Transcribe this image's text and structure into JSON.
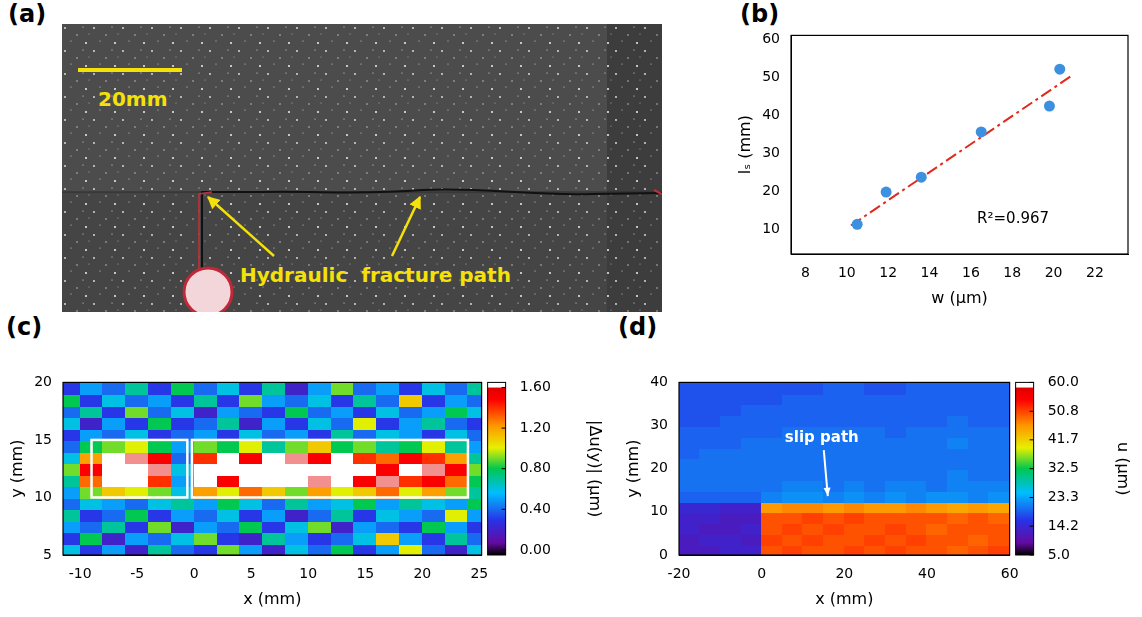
{
  "photo": {
    "panel": "(a)",
    "scale_bar": "20mm",
    "annotation": "Hydraulic  fracture path"
  },
  "chart_data": [
    {
      "panel": "(b)",
      "type": "scatter",
      "x_label": "w (μm)",
      "y_label": "lₛ (mm)",
      "xlim": [
        7.3,
        23.6
      ],
      "xticks": [
        8,
        10,
        12,
        14,
        16,
        18,
        20,
        22
      ],
      "ylim": [
        3.5,
        61
      ],
      "yticks": [
        10,
        20,
        30,
        40,
        50,
        60
      ],
      "grid": false,
      "series": [
        {
          "type": "scatter",
          "marker": "circle",
          "color": "#3d8fe0",
          "x": [
            10.5,
            11.9,
            13.6,
            16.5,
            19.8,
            20.3
          ],
          "values": [
            11.3,
            19.8,
            23.7,
            35.6,
            42.4,
            52.1
          ]
        },
        {
          "type": "line",
          "line_style": "dashdot",
          "color": "#e02a1e",
          "x": [
            10.2,
            20.9
          ],
          "values": [
            11.0,
            50.5
          ]
        }
      ],
      "annotations": [
        {
          "text": "R²=0.967",
          "x": 16.3,
          "y": 12.7
        }
      ]
    },
    {
      "panel": "(c)",
      "type": "heatmap",
      "x_label": "x (mm)",
      "y_label": "y (mm)",
      "xlim": [
        -11.5,
        25.2
      ],
      "xticks": [
        -10,
        -5,
        0,
        5,
        10,
        15,
        20,
        25
      ],
      "ylim": [
        5,
        20
      ],
      "yticks": [
        5,
        10,
        15,
        20
      ],
      "grid": false,
      "x": [
        -11,
        -9,
        -7,
        -5,
        -3,
        -1,
        1,
        3,
        5,
        7,
        9,
        11,
        13,
        15,
        17,
        19,
        21,
        23,
        25
      ],
      "y": [
        5.5,
        6.5,
        7.5,
        8.5,
        9.5,
        10.5,
        11.5,
        12.5,
        13.5,
        14.5,
        15.5,
        16.5,
        17.5,
        18.5,
        19.5
      ],
      "cells": [
        [
          0.6,
          0.3,
          0.5,
          0.2,
          0.7,
          0.4,
          0.3,
          0.9,
          0.5,
          0.2,
          0.6,
          0.4,
          0.8,
          0.3,
          0.5,
          1.0,
          0.4,
          0.2,
          0.6
        ],
        [
          0.3,
          0.8,
          0.2,
          0.5,
          0.4,
          0.6,
          0.9,
          0.3,
          0.2,
          0.7,
          0.5,
          0.3,
          0.4,
          0.6,
          1.1,
          0.5,
          0.3,
          0.7,
          0.4
        ],
        [
          0.5,
          0.4,
          0.7,
          0.3,
          0.9,
          0.2,
          0.5,
          0.4,
          0.8,
          0.3,
          0.6,
          0.9,
          0.2,
          0.5,
          0.4,
          0.3,
          0.8,
          0.5,
          0.3
        ],
        [
          0.7,
          0.3,
          0.4,
          0.8,
          0.3,
          0.5,
          0.4,
          0.6,
          0.3,
          0.5,
          0.2,
          0.4,
          0.7,
          0.3,
          0.6,
          0.5,
          0.4,
          1.0,
          0.5
        ],
        [
          0.4,
          0.6,
          0.5,
          0.4,
          0.6,
          0.7,
          0.5,
          0.8,
          0.6,
          0.4,
          0.7,
          0.5,
          0.6,
          0.8,
          0.5,
          0.7,
          0.6,
          0.5,
          0.8
        ],
        [
          0.5,
          0.9,
          1.1,
          1.0,
          0.9,
          0.6,
          1.2,
          1.0,
          1.3,
          1.1,
          0.9,
          1.2,
          1.0,
          1.1,
          1.3,
          1.0,
          1.2,
          0.9,
          0.7
        ],
        [
          0.7,
          1.3,
          1.7,
          1.8,
          1.4,
          0.5,
          1.7,
          1.5,
          1.8,
          1.7,
          1.9,
          1.6,
          1.8,
          1.5,
          1.6,
          1.4,
          1.5,
          1.3,
          0.8
        ],
        [
          0.9,
          1.5,
          1.8,
          1.9,
          1.6,
          0.6,
          1.8,
          1.9,
          1.7,
          1.8,
          1.8,
          1.9,
          1.7,
          1.8,
          1.5,
          1.7,
          1.6,
          1.5,
          0.9
        ],
        [
          0.6,
          1.2,
          1.7,
          1.6,
          1.5,
          0.4,
          1.4,
          1.7,
          1.5,
          1.8,
          1.6,
          1.5,
          1.7,
          1.4,
          1.3,
          1.5,
          1.4,
          1.2,
          0.7
        ],
        [
          0.4,
          0.8,
          0.9,
          1.0,
          0.8,
          0.5,
          0.9,
          0.8,
          1.0,
          0.7,
          0.9,
          1.1,
          0.8,
          0.9,
          0.7,
          0.8,
          1.0,
          0.7,
          0.5
        ],
        [
          0.3,
          0.5,
          0.4,
          0.6,
          0.3,
          0.4,
          0.5,
          0.3,
          0.6,
          0.4,
          0.5,
          0.3,
          0.7,
          0.4,
          0.6,
          0.5,
          0.3,
          0.6,
          0.4
        ],
        [
          0.6,
          0.2,
          0.5,
          0.3,
          0.8,
          0.3,
          0.4,
          0.7,
          0.2,
          0.5,
          0.3,
          0.6,
          0.4,
          1.0,
          0.3,
          0.5,
          0.7,
          0.4,
          0.3
        ],
        [
          0.4,
          0.7,
          0.3,
          0.9,
          0.4,
          0.6,
          0.2,
          0.5,
          0.4,
          0.3,
          0.8,
          0.4,
          0.5,
          0.3,
          0.6,
          0.4,
          0.5,
          0.8,
          0.6
        ],
        [
          0.8,
          0.3,
          0.6,
          0.4,
          0.5,
          0.3,
          0.7,
          0.3,
          0.9,
          0.5,
          0.4,
          0.6,
          0.3,
          0.7,
          0.4,
          1.1,
          0.3,
          0.5,
          0.4
        ],
        [
          0.3,
          0.5,
          0.4,
          0.7,
          0.3,
          0.8,
          0.4,
          0.6,
          0.3,
          0.7,
          0.2,
          0.5,
          0.9,
          0.4,
          0.5,
          0.3,
          0.6,
          0.4,
          0.7
        ]
      ],
      "colorbar": {
        "label": "|Δu(y)| (μm)",
        "range": [
          -0.05,
          1.65
        ],
        "ticks": [
          {
            "value": 0,
            "label": "0.00"
          },
          {
            "value": 0.4,
            "label": "0.40"
          },
          {
            "value": 0.8,
            "label": "0.80"
          },
          {
            "value": 1.2,
            "label": "1.20"
          },
          {
            "value": 1.6,
            "label": "1.60"
          }
        ]
      },
      "boxes": [
        {
          "x": [
            -9,
            -0.6
          ],
          "y": [
            10,
            15
          ]
        },
        {
          "x": [
            -0.2,
            24
          ],
          "y": [
            10,
            15
          ]
        }
      ]
    },
    {
      "panel": "(d)",
      "type": "heatmap",
      "x_label": "x (mm)",
      "y_label": "y (mm)",
      "xlim": [
        -20,
        60
      ],
      "xticks": [
        -20,
        0,
        20,
        40,
        60
      ],
      "ylim": [
        0,
        40
      ],
      "yticks": [
        0,
        10,
        20,
        30,
        40
      ],
      "grid": false,
      "x": [
        -17.5,
        -12.5,
        -7.5,
        -2.5,
        2.5,
        7.5,
        12.5,
        17.5,
        22.5,
        27.5,
        32.5,
        37.5,
        42.5,
        47.5,
        52.5,
        57.5
      ],
      "y": [
        1.25,
        3.75,
        6.25,
        8.75,
        11.25,
        13.75,
        16.25,
        18.75,
        21.25,
        23.75,
        26.25,
        28.75,
        31.25,
        33.75,
        36.25,
        38.75
      ],
      "cells": [
        [
          12,
          12,
          13,
          13,
          50,
          51,
          50,
          50,
          51,
          50,
          51,
          50,
          50,
          49,
          50,
          51
        ],
        [
          12,
          13,
          13,
          12,
          51,
          50,
          51,
          50,
          50,
          51,
          50,
          51,
          50,
          50,
          49,
          50
        ],
        [
          13,
          12,
          12,
          13,
          50,
          51,
          50,
          51,
          50,
          50,
          51,
          50,
          49,
          50,
          50,
          50
        ],
        [
          13,
          13,
          12,
          12,
          50,
          50,
          51,
          50,
          51,
          50,
          50,
          50,
          50,
          49,
          50,
          49
        ],
        [
          14,
          14,
          13,
          13,
          46,
          47,
          47,
          46,
          47,
          46,
          46,
          47,
          46,
          45,
          46,
          45
        ],
        [
          19,
          19,
          19,
          19,
          21,
          22,
          22,
          21,
          22,
          21,
          22,
          21,
          22,
          22,
          21,
          22
        ],
        [
          20,
          20,
          20,
          20,
          20,
          21,
          21,
          20,
          21,
          20,
          21,
          21,
          20,
          21,
          21,
          21
        ],
        [
          20,
          20,
          20,
          20,
          20,
          20,
          20,
          20,
          20,
          20,
          20,
          20,
          20,
          21,
          20,
          20
        ],
        [
          20,
          20,
          20,
          20,
          20,
          20,
          20,
          20,
          20,
          20,
          20,
          20,
          20,
          20,
          20,
          20
        ],
        [
          19,
          20,
          20,
          20,
          20,
          20,
          20,
          20,
          20,
          20,
          20,
          20,
          20,
          20,
          20,
          20
        ],
        [
          19,
          19,
          19,
          20,
          20,
          20,
          20,
          20,
          20,
          20,
          20,
          20,
          20,
          21,
          20,
          20
        ],
        [
          19,
          19,
          19,
          19,
          19,
          20,
          20,
          20,
          20,
          20,
          19,
          20,
          20,
          20,
          20,
          20
        ],
        [
          18,
          18,
          19,
          19,
          19,
          19,
          19,
          19,
          19,
          19,
          19,
          19,
          19,
          20,
          19,
          19
        ],
        [
          18,
          18,
          18,
          19,
          19,
          19,
          19,
          19,
          19,
          19,
          19,
          19,
          19,
          19,
          19,
          19
        ],
        [
          18,
          18,
          18,
          18,
          18,
          19,
          19,
          19,
          19,
          19,
          19,
          19,
          19,
          19,
          19,
          19
        ],
        [
          18,
          18,
          18,
          18,
          18,
          18,
          18,
          19,
          19,
          18,
          18,
          19,
          19,
          19,
          19,
          19
        ]
      ],
      "colorbar": {
        "label": "u (μm)",
        "range": [
          5,
          60
        ],
        "ticks": [
          {
            "value": 5,
            "label": "5.0"
          },
          14.2,
          23.3,
          32.5,
          41.7,
          50.8,
          {
            "value": 60,
            "label": "60.0"
          }
        ]
      },
      "annotations": [
        {
          "text": "slip path",
          "x": 16,
          "y": 13.2
        }
      ]
    }
  ]
}
